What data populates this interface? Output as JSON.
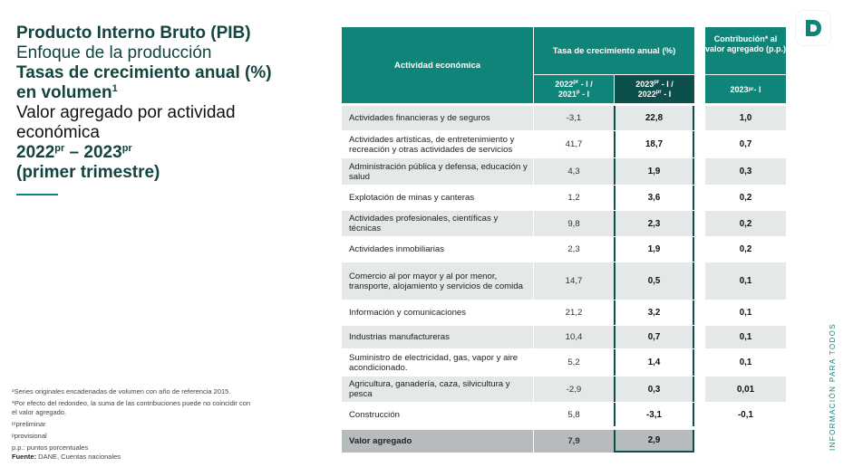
{
  "title": {
    "line1": "Producto Interno Bruto (PIB)",
    "line2": "Enfoque de la producción",
    "line3": "Tasas de crecimiento anual (%)",
    "line4": "en volumen",
    "line4_sup": "1",
    "line5": "Valor agregado por actividad",
    "line6": "económica",
    "line7_a": "2022",
    "line7_a_sup": "pr",
    "line7_b": " – 2023",
    "line7_b_sup": "pr",
    "line8": "(primer trimestre)"
  },
  "footnotes": {
    "n1": "¹Series originales encadenadas de volumen con año de referencia 2015.",
    "n2": "*Por efecto del redondeo, la suma de las contribuciones puede no coincidir con el valor agregado.",
    "n3": "ᵖʳpreliminar",
    "n4": "ᵖprovisional",
    "n5": "p.p.: puntos porcentuales",
    "source_label": "Fuente:",
    "source_text": " DANE, Cuentas nacionales"
  },
  "table": {
    "col_activity": "Actividad económica",
    "col_rate": "Tasa de crecimiento anual (%)",
    "col1_a": "2022",
    "col1_a_sup": "pr",
    "col1_b": " - I /",
    "col1_c": "2021",
    "col1_c_sup": "p",
    "col1_d": " - I",
    "col2_a": "2023",
    "col2_a_sup": "pr",
    "col2_b": " - I /",
    "col2_c": "2022",
    "col2_c_sup": "pr",
    "col2_d": " - I",
    "contrib_header": "Contribución* al valor agregado (p.p.)",
    "contrib_sub_a": "2023",
    "contrib_sub_sup": "pr",
    "contrib_sub_b": " - I",
    "rows": [
      {
        "activity": "Actividades financieras y de seguros",
        "v1": "-3,1",
        "v2": "22,8",
        "contrib": "1,0"
      },
      {
        "activity": "Actividades artísticas, de entretenimiento y recreación y otras actividades de servicios",
        "v1": "41,7",
        "v2": "18,7",
        "contrib": "0,7"
      },
      {
        "activity": "Administración pública y defensa, educación y salud",
        "v1": "4,3",
        "v2": "1,9",
        "contrib": "0,3"
      },
      {
        "activity": "Explotación de minas y canteras",
        "v1": "1,2",
        "v2": "3,6",
        "contrib": "0,2"
      },
      {
        "activity": "Actividades profesionales, científicas y técnicas",
        "v1": "9,8",
        "v2": "2,3",
        "contrib": "0,2"
      },
      {
        "activity": "Actividades inmobiliarias",
        "v1": "2,3",
        "v2": "1,9",
        "contrib": "0,2"
      },
      {
        "activity": "Comercio al por mayor y al por menor, transporte, alojamiento y servicios de comida",
        "v1": "14,7",
        "v2": "0,5",
        "contrib": "0,1"
      },
      {
        "activity": "Información y comunicaciones",
        "v1": "21,2",
        "v2": "3,2",
        "contrib": "0,1"
      },
      {
        "activity": "Industrias manufactureras",
        "v1": "10,4",
        "v2": "0,7",
        "contrib": "0,1"
      },
      {
        "activity": "Suministro de electricidad, gas, vapor y aire acondicionado.",
        "v1": "5,2",
        "v2": "1,4",
        "contrib": "0,1"
      },
      {
        "activity": "Agricultura, ganadería, caza, silvicultura y pesca",
        "v1": "-2,9",
        "v2": "0,3",
        "contrib": "0,01"
      },
      {
        "activity": "Construcción",
        "v1": "5,8",
        "v2": "-3,1",
        "contrib": "-0,1"
      }
    ],
    "total": {
      "activity": "Valor agregado",
      "v1": "7,9",
      "v2": "2,9"
    }
  },
  "side_text": "INFORMACIÓN PARA TODOS",
  "colors": {
    "accent": "#0f8579",
    "dark": "#0d4f4b",
    "row_gray": "#e4e8e8",
    "total_gray": "#b6bcbd"
  },
  "logo_icon": "dane-logo-icon"
}
